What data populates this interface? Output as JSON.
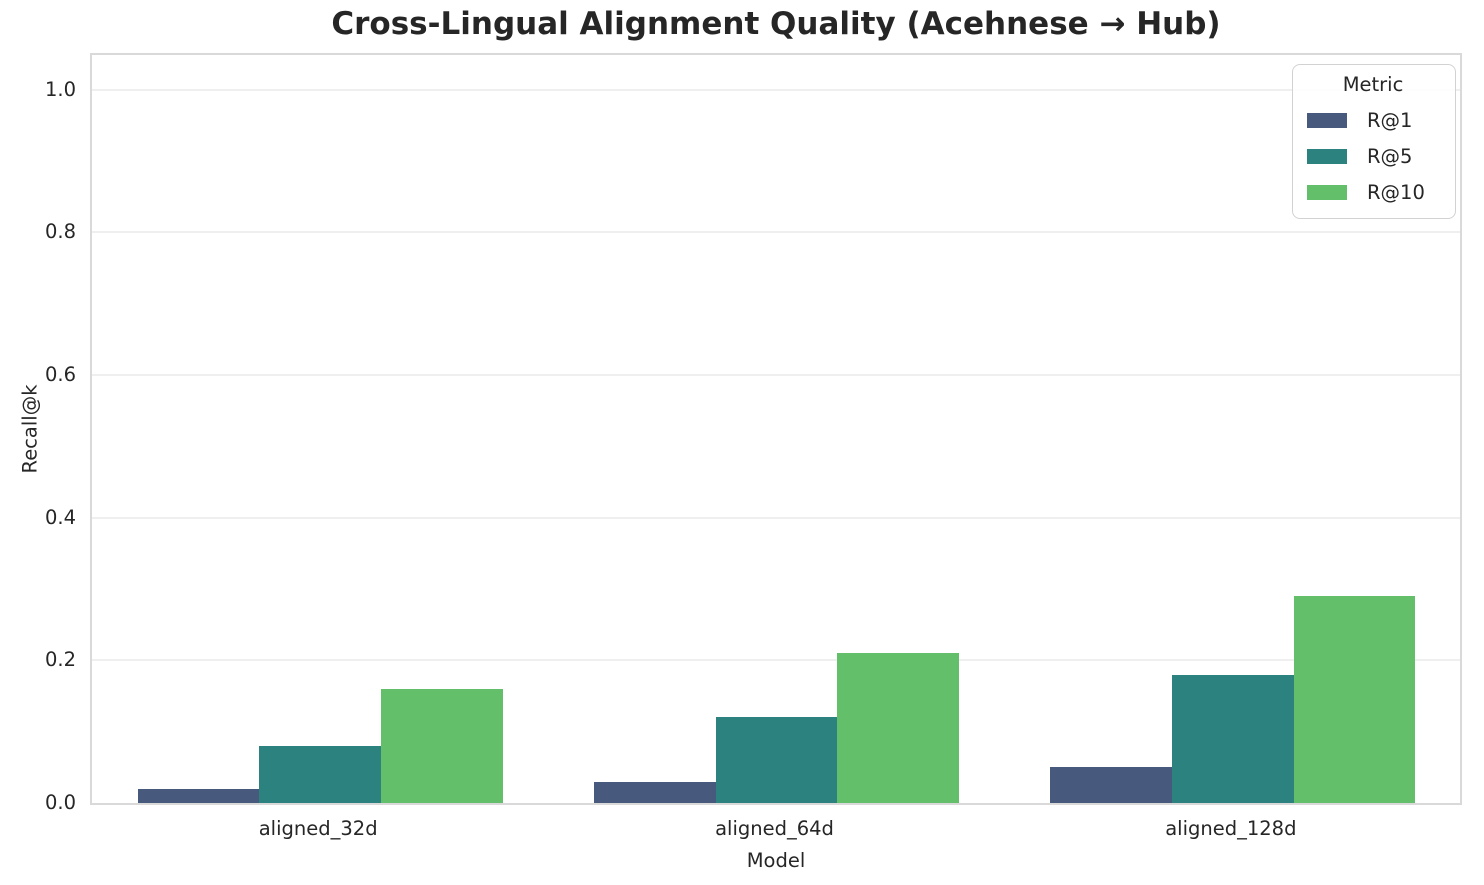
{
  "title": "Cross-Lingual Alignment Quality (Acehnese → Hub)",
  "chart_data": {
    "type": "bar",
    "title": "Cross-Lingual Alignment Quality (Acehnese → Hub)",
    "categories": [
      "aligned_32d",
      "aligned_64d",
      "aligned_128d"
    ],
    "series": [
      {
        "name": "R@1",
        "color": "#48597e",
        "values": [
          0.02,
          0.03,
          0.05
        ]
      },
      {
        "name": "R@5",
        "color": "#2b827e",
        "values": [
          0.08,
          0.12,
          0.18
        ]
      },
      {
        "name": "R@10",
        "color": "#64bf6a",
        "values": [
          0.16,
          0.21,
          0.29
        ]
      }
    ],
    "xlabel": "Model",
    "ylabel": "Recall@k",
    "ylim": [
      0,
      1.05
    ],
    "y_ticks": [
      "0.0",
      "0.2",
      "0.4",
      "0.6",
      "0.8",
      "1.0"
    ],
    "grid": "horizontal",
    "legend_title": "Metric",
    "legend_position": "upper-right"
  }
}
